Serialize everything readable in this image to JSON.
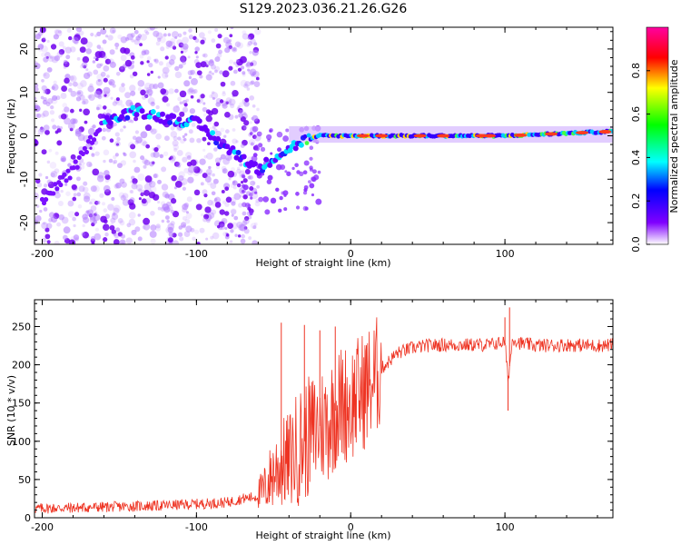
{
  "title": "S129.2023.036.21.26.G26",
  "colors": {
    "snr_line": "#ee3322",
    "axis": "#000000",
    "colormap": [
      "#ffffff",
      "#8000ff",
      "#0000ff",
      "#00ffff",
      "#00ff00",
      "#ffff00",
      "#ff0000",
      "#ff00a0"
    ]
  },
  "chart_data": [
    {
      "type": "heatmap",
      "xlabel": "Height of straight line (km)",
      "ylabel": "Frequency (Hz)",
      "xlim": [
        -205,
        170
      ],
      "ylim": [
        -25,
        25
      ],
      "xticks": [
        -200,
        -100,
        0,
        100
      ],
      "yticks": [
        -20,
        -10,
        0,
        10,
        20
      ],
      "colorbar": {
        "label": "Normalized spectral amplitude",
        "range": [
          0,
          1
        ],
        "ticks": [
          "0.0",
          "0.2",
          "0.4",
          "0.6",
          "0.8"
        ]
      },
      "ridge": {
        "x": [
          -200,
          -180,
          -160,
          -150,
          -140,
          -120,
          -100,
          -90,
          -80,
          -70,
          -60,
          -50,
          -40,
          -30,
          -20,
          0,
          50,
          100,
          170
        ],
        "y": [
          -15,
          -8,
          4,
          4,
          6,
          4,
          3,
          0,
          -3,
          -5,
          -8,
          -5,
          -3,
          -1,
          0,
          0,
          0,
          0,
          1
        ]
      }
    },
    {
      "type": "line",
      "xlabel": "Height of straight line (km)",
      "ylabel": "SNR (10 * v/v)",
      "xlim": [
        -205,
        170
      ],
      "ylim": [
        0,
        285
      ],
      "xticks": [
        -200,
        -100,
        0,
        100
      ],
      "yticks": [
        0,
        50,
        100,
        150,
        200,
        250
      ],
      "series": [
        {
          "x": [
            -205,
            -180,
            -160,
            -140,
            -120,
            -100,
            -80,
            -70,
            -60,
            -55,
            -50,
            -45,
            -40,
            -35,
            -30,
            -25,
            -20,
            -15,
            -10,
            -5,
            0,
            5,
            10,
            15,
            20,
            25,
            30,
            40,
            50,
            60,
            70,
            80,
            90,
            95,
            100,
            102,
            105,
            110,
            120,
            140,
            160,
            170
          ],
          "values": [
            12,
            13,
            14,
            15,
            16,
            18,
            20,
            25,
            28,
            40,
            60,
            70,
            75,
            90,
            100,
            110,
            120,
            125,
            140,
            150,
            150,
            160,
            170,
            180,
            195,
            205,
            215,
            222,
            225,
            226,
            226,
            226,
            226,
            228,
            230,
            180,
            235,
            228,
            225,
            226,
            225,
            226
          ]
        }
      ],
      "spikes": [
        {
          "x": -45,
          "y": 255
        },
        {
          "x": -30,
          "y": 252
        },
        {
          "x": -20,
          "y": 245
        },
        {
          "x": -10,
          "y": 250
        },
        {
          "x": 100,
          "y": 262
        },
        {
          "x": 102,
          "y": 140
        },
        {
          "x": 103,
          "y": 275
        }
      ]
    }
  ]
}
